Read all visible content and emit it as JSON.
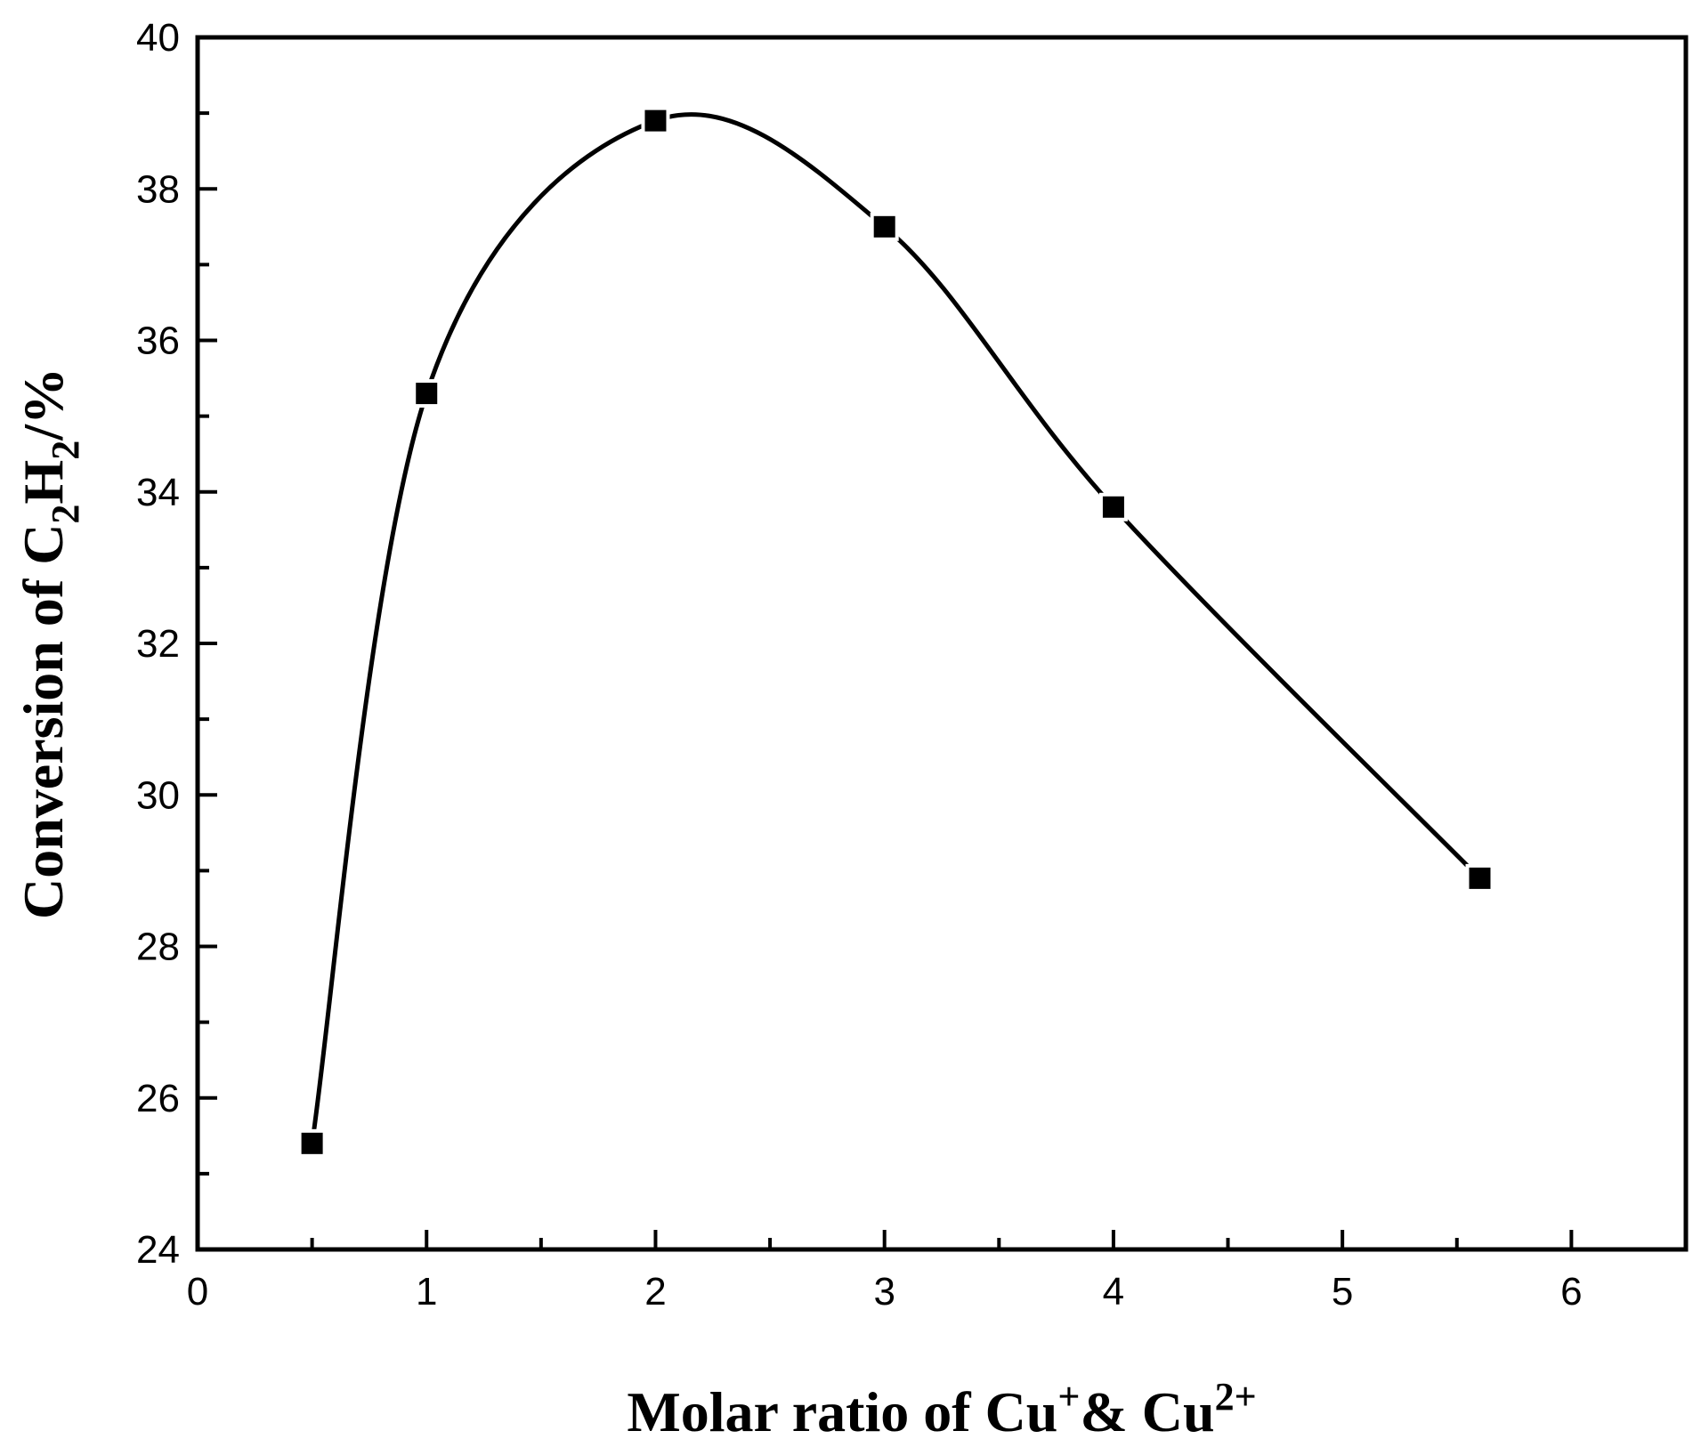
{
  "chart_data": {
    "type": "line",
    "xlabel": "Molar ratio of Cu+& Cu2+",
    "ylabel": "Conversion of C2H2/%",
    "xlim": [
      0,
      6.5
    ],
    "ylim": [
      24,
      40
    ],
    "x_ticks": [
      "0",
      "1",
      "2",
      "3",
      "4",
      "5",
      "6"
    ],
    "y_ticks": [
      "24",
      "26",
      "28",
      "30",
      "32",
      "34",
      "36",
      "38",
      "40"
    ],
    "grid": false,
    "legend": "none",
    "series": [
      {
        "marker": "square",
        "color": "#000000",
        "x": [
          0.5,
          1,
          2,
          3,
          4,
          5.6
        ],
        "y": [
          25.4,
          35.3,
          38.9,
          37.5,
          33.8,
          28.9
        ]
      }
    ]
  }
}
